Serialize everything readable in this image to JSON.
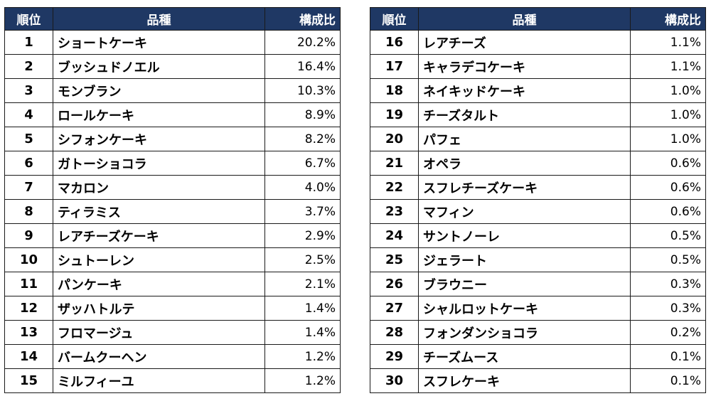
{
  "headers": {
    "rank": "順位",
    "name": "品種",
    "share": "構成比"
  },
  "rows": [
    {
      "rank": "1",
      "name": "ショートケーキ",
      "share": "20.2%"
    },
    {
      "rank": "2",
      "name": "ブッシュドノエル",
      "share": "16.4%"
    },
    {
      "rank": "3",
      "name": "モンブラン",
      "share": "10.3%"
    },
    {
      "rank": "4",
      "name": "ロールケーキ",
      "share": "8.9%"
    },
    {
      "rank": "5",
      "name": "シフォンケーキ",
      "share": "8.2%"
    },
    {
      "rank": "6",
      "name": "ガトーショコラ",
      "share": "6.7%"
    },
    {
      "rank": "7",
      "name": "マカロン",
      "share": "4.0%"
    },
    {
      "rank": "8",
      "name": "ティラミス",
      "share": "3.7%"
    },
    {
      "rank": "9",
      "name": "レアチーズケーキ",
      "share": "2.9%"
    },
    {
      "rank": "10",
      "name": "シュトーレン",
      "share": "2.5%"
    },
    {
      "rank": "11",
      "name": "パンケーキ",
      "share": "2.1%"
    },
    {
      "rank": "12",
      "name": "ザッハトルテ",
      "share": "1.4%"
    },
    {
      "rank": "13",
      "name": "フロマージュ",
      "share": "1.4%"
    },
    {
      "rank": "14",
      "name": "バームクーヘン",
      "share": "1.2%"
    },
    {
      "rank": "15",
      "name": "ミルフィーユ",
      "share": "1.2%"
    },
    {
      "rank": "16",
      "name": "レアチーズ",
      "share": "1.1%"
    },
    {
      "rank": "17",
      "name": "キャラデコケーキ",
      "share": "1.1%"
    },
    {
      "rank": "18",
      "name": "ネイキッドケーキ",
      "share": "1.0%"
    },
    {
      "rank": "19",
      "name": "チーズタルト",
      "share": "1.0%"
    },
    {
      "rank": "20",
      "name": "パフェ",
      "share": "1.0%"
    },
    {
      "rank": "21",
      "name": "オペラ",
      "share": "0.6%"
    },
    {
      "rank": "22",
      "name": "スフレチーズケーキ",
      "share": "0.6%"
    },
    {
      "rank": "23",
      "name": "マフィン",
      "share": "0.6%"
    },
    {
      "rank": "24",
      "name": "サントノーレ",
      "share": "0.5%"
    },
    {
      "rank": "25",
      "name": "ジェラート",
      "share": "0.5%"
    },
    {
      "rank": "26",
      "name": "ブラウニー",
      "share": "0.3%"
    },
    {
      "rank": "27",
      "name": "シャルロットケーキ",
      "share": "0.3%"
    },
    {
      "rank": "28",
      "name": "フォンダンショコラ",
      "share": "0.2%"
    },
    {
      "rank": "29",
      "name": "チーズムース",
      "share": "0.1%"
    },
    {
      "rank": "30",
      "name": "スフレケーキ",
      "share": "0.1%"
    }
  ],
  "colors": {
    "header_bg": "#1f3864",
    "header_text": "#ffffff",
    "border": "#1a1a1a"
  }
}
